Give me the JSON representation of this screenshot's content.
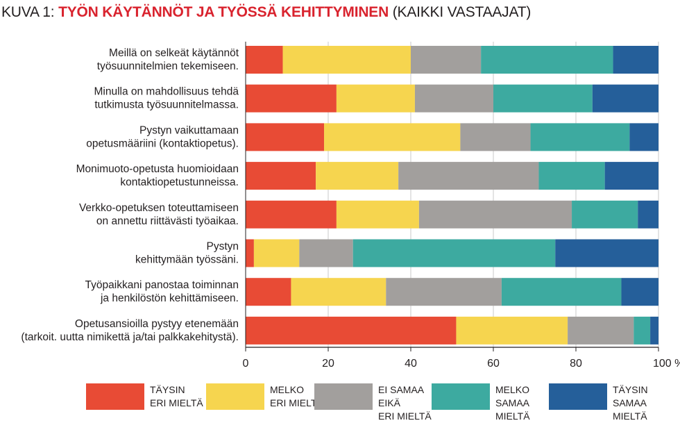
{
  "title": {
    "prefix": "KUVA 1: ",
    "main": "TYÖN KÄYTÄNNÖT JA TYÖSSÄ KEHITTYMINEN",
    "suffix": " (KAIKKI VASTAAJAT)"
  },
  "colors": {
    "taysin_eri": "#e84b35",
    "melko_eri": "#f6d54f",
    "ei_samaa_eika_eri": "#a29f9d",
    "melko_samaa": "#3daaa0",
    "taysin_samaa": "#255f9a"
  },
  "chart_data": {
    "type": "bar",
    "orientation": "horizontal",
    "stacked": true,
    "categories": [
      [
        "Meillä on selkeät käytännöt",
        "työsuunnitelmien tekemiseen."
      ],
      [
        "Minulla on mahdollisuus tehdä",
        "tutkimusta työsuunnitelmassa."
      ],
      [
        "Pystyn vaikuttamaan",
        "opetusmääriini (kontaktiopetus)."
      ],
      [
        "Monimuoto-opetusta huomioidaan",
        "kontaktiopetustunneissa."
      ],
      [
        "Verkko-opetuksen toteuttamiseen",
        "on annettu riittävästi työaikaa."
      ],
      [
        "Pystyn",
        "kehittymään työssäni."
      ],
      [
        "Työpaikkani panostaa toiminnan",
        "ja henkilöstön kehittämiseen."
      ],
      [
        "Opetusansioilla pystyy etenemään",
        "(tarkoit. uutta nimikettä ja/tai palkkakehitystä)."
      ]
    ],
    "series": [
      {
        "name": "TÄYSIN ERI MIELTÄ",
        "label_lines": [
          "TÄYSIN",
          "ERI MIELTÄ"
        ],
        "color_key": "taysin_eri",
        "values": [
          9,
          22,
          19,
          17,
          22,
          2,
          11,
          51
        ]
      },
      {
        "name": "MELKO ERI MIELTÄ",
        "label_lines": [
          "MELKO",
          "ERI MIELTÄ"
        ],
        "color_key": "melko_eri",
        "values": [
          31,
          19,
          33,
          20,
          20,
          11,
          23,
          27
        ]
      },
      {
        "name": "EI SAMAA EIKÄ ERI MIELTÄ",
        "label_lines": [
          "EI SAMAA EIKÄ",
          "ERI MIELTÄ"
        ],
        "color_key": "ei_samaa_eika_eri",
        "values": [
          17,
          19,
          17,
          34,
          37,
          13,
          28,
          16
        ]
      },
      {
        "name": "MELKO SAMAA MIELTÄ",
        "label_lines": [
          "MELKO",
          "SAMAA MIELTÄ"
        ],
        "color_key": "melko_samaa",
        "values": [
          32,
          24,
          24,
          16,
          16,
          49,
          29,
          4
        ]
      },
      {
        "name": "TÄYSIN SAMAA MIELTÄ",
        "label_lines": [
          "TÄYSIN",
          "SAMAA MIELTÄ"
        ],
        "color_key": "taysin_samaa",
        "values": [
          11,
          16,
          7,
          13,
          5,
          25,
          9,
          2
        ]
      }
    ],
    "xticks": [
      "0",
      "20",
      "40",
      "60",
      "80",
      "100 %"
    ],
    "xlim": [
      0,
      100
    ],
    "grid": true,
    "legend": "bottom"
  }
}
